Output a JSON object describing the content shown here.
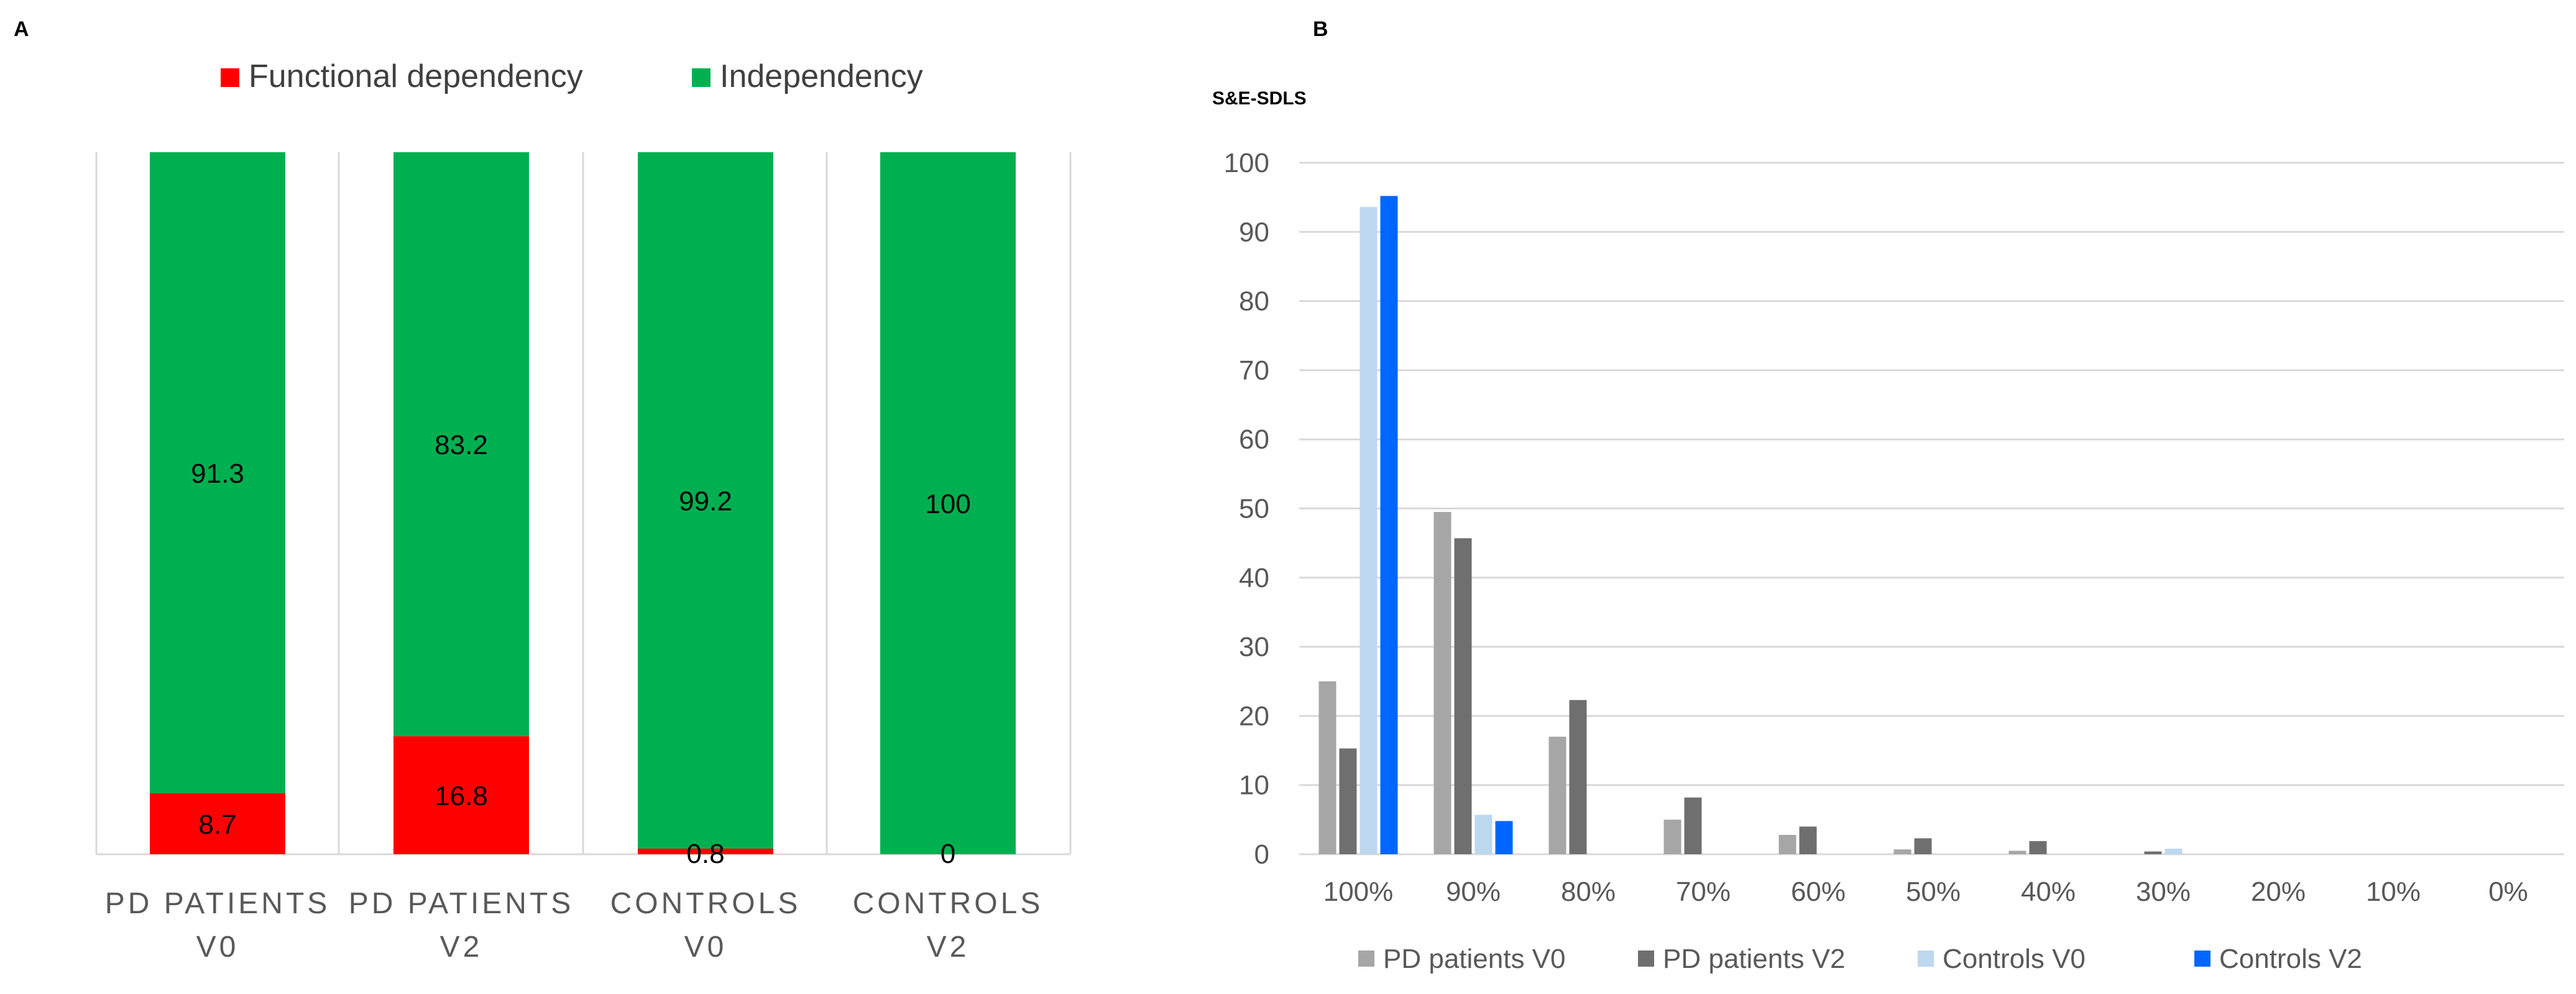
{
  "panels": {
    "a": "A",
    "b": "B"
  },
  "colors": {
    "functional": "#ff0000",
    "independency": "#00b050",
    "gridline": "#d9d9d9",
    "axis_text": "#595959",
    "pd_v0": "#a6a6a6",
    "pd_v2": "#6f6f6f",
    "ctrl_v0": "#bdd7ee",
    "ctrl_v2": "#0066ff"
  },
  "chart_data": [
    {
      "type": "stacked-bar",
      "panel": "A",
      "title": "",
      "legend_position": "top",
      "categories": [
        [
          "PD PATIENTS",
          "V0"
        ],
        [
          "PD PATIENTS",
          "V2"
        ],
        [
          "CONTROLS",
          "V0"
        ],
        [
          "CONTROLS",
          "V2"
        ]
      ],
      "series": [
        {
          "name": "Functional dependency",
          "values": [
            8.7,
            16.8,
            0.8,
            0
          ]
        },
        {
          "name": "Independency",
          "values": [
            91.3,
            83.2,
            99.2,
            100
          ]
        }
      ],
      "ylim": [
        0,
        100
      ],
      "value_labels": {
        "Functional dependency": [
          "8.7",
          "16.8",
          "0.8",
          "0"
        ],
        "Independency": [
          "91.3",
          "83.2",
          "99.2",
          "100"
        ]
      }
    },
    {
      "type": "bar",
      "panel": "B",
      "ylabel": "S&E-SDLS",
      "ylim": [
        0,
        100
      ],
      "yticks": [
        0,
        10,
        20,
        30,
        40,
        50,
        60,
        70,
        80,
        90,
        100
      ],
      "grid": true,
      "legend_position": "bottom",
      "categories": [
        "100%",
        "90%",
        "80%",
        "70%",
        "60%",
        "50%",
        "40%",
        "30%",
        "20%",
        "10%",
        "0%"
      ],
      "series": [
        {
          "name": "PD patients V0",
          "values": [
            25,
            49.5,
            17,
            5,
            2.8,
            0.7,
            0.5,
            0,
            0,
            0,
            0
          ]
        },
        {
          "name": "PD patients V2",
          "values": [
            15.3,
            45.7,
            22.3,
            8.2,
            4,
            2.3,
            1.9,
            0.4,
            0,
            0,
            0
          ]
        },
        {
          "name": "Controls V0",
          "values": [
            93.6,
            5.7,
            0,
            0,
            0,
            0,
            0,
            0.8,
            0,
            0,
            0
          ]
        },
        {
          "name": "Controls V2",
          "values": [
            95.2,
            4.8,
            0,
            0,
            0,
            0,
            0,
            0,
            0,
            0,
            0
          ]
        }
      ]
    }
  ]
}
